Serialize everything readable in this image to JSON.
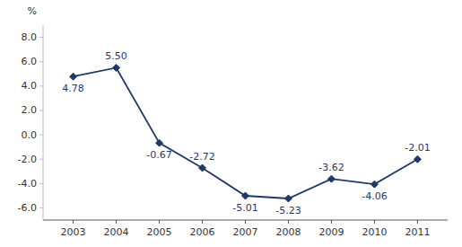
{
  "chart_data": {
    "type": "line",
    "ylabel": "%",
    "x": [
      2003,
      2004,
      2005,
      2006,
      2007,
      2008,
      2009,
      2010,
      2011
    ],
    "values": [
      4.78,
      5.5,
      -0.67,
      -2.72,
      -5.01,
      -5.23,
      -3.62,
      -4.06,
      -2.01
    ],
    "value_labels": [
      "4.78",
      "5.50",
      "-0.67",
      "-2.72",
      "-5.01",
      "-5.23",
      "-3.62",
      "-4.06",
      "-2.01"
    ],
    "data_labels": true,
    "color": "#1F3864",
    "marker": "diamond",
    "xlim": [
      2002.3,
      2011.7
    ],
    "xticks": [
      2003,
      2004,
      2005,
      2006,
      2007,
      2008,
      2009,
      2010,
      2011
    ],
    "ylim": [
      -7.0,
      9.0
    ],
    "yticks": [
      {
        "value": -6.0,
        "label": "-6.0"
      },
      {
        "value": -4.0,
        "label": "-4.0"
      },
      {
        "value": -2.0,
        "label": "-2.0"
      },
      {
        "value": 0.0,
        "label": "0.0"
      },
      {
        "value": 2.0,
        "label": "2.0"
      },
      {
        "value": 4.0,
        "label": "4.0"
      },
      {
        "value": 6.0,
        "label": "6.0"
      },
      {
        "value": 8.0,
        "label": "8.0"
      }
    ],
    "grid": false
  }
}
